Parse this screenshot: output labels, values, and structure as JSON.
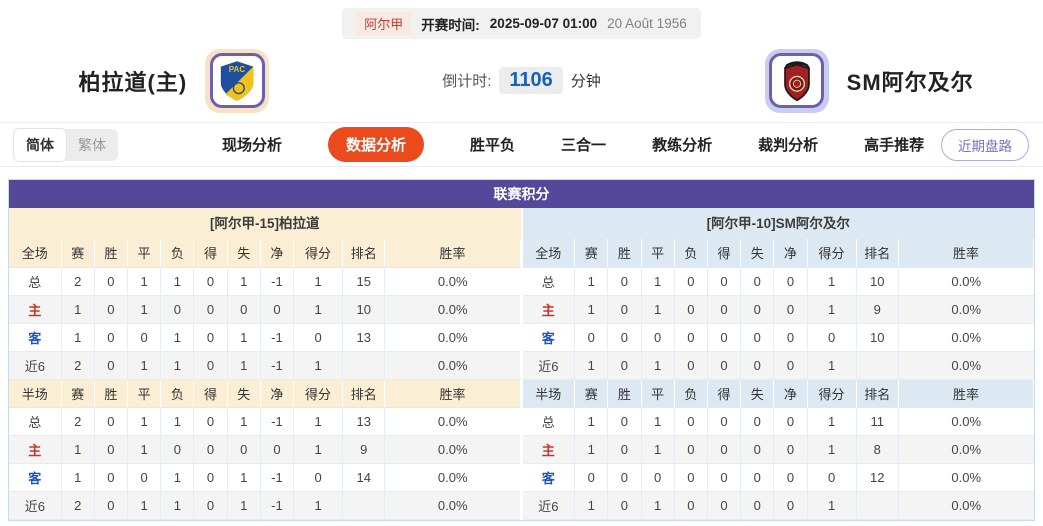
{
  "top_bar": {
    "league": "阿尔甲",
    "kickoff_label": "开赛时间:",
    "kickoff_time": "2025-09-07 01:00",
    "date_note": "20 Août 1956"
  },
  "header": {
    "home_team": "柏拉道(主)",
    "away_team": "SM阿尔及尔",
    "home_logo_text": "PAC",
    "away_logo_text": "U.S.M.A",
    "countdown_label": "倒计时:",
    "countdown_value": "1106",
    "countdown_unit": "分钟"
  },
  "lang_toggle": {
    "simplified": "简体",
    "traditional": "繁体"
  },
  "nav": {
    "items": [
      "现场分析",
      "数据分析",
      "胜平负",
      "三合一",
      "教练分析",
      "裁判分析",
      "高手推荐"
    ],
    "active_index": 1,
    "recent_button": "近期盘路"
  },
  "colors": {
    "accent_orange": "#EA4A1C",
    "purple_header": "#55489B",
    "cream_band": "#FAEFD5",
    "blue_band": "#DDE9F2",
    "home_row_red": "#C4352D",
    "away_row_blue": "#1A56C4",
    "countdown_blue": "#1660C0"
  },
  "table": {
    "title": "联赛积分",
    "columns": [
      "赛",
      "胜",
      "平",
      "负",
      "得",
      "失",
      "净",
      "得分",
      "排名",
      "胜率"
    ],
    "sides": [
      {
        "team_header": "[阿尔甲-15]柏拉道",
        "theme": "cream",
        "sections": [
          {
            "label": "全场",
            "rows": [
              {
                "label": "总",
                "type": "total",
                "values": [
                  "2",
                  "0",
                  "1",
                  "1",
                  "0",
                  "1",
                  "-1",
                  "1",
                  "15",
                  "0.0%"
                ]
              },
              {
                "label": "主",
                "type": "home",
                "values": [
                  "1",
                  "0",
                  "1",
                  "0",
                  "0",
                  "0",
                  "0",
                  "1",
                  "10",
                  "0.0%"
                ]
              },
              {
                "label": "客",
                "type": "away",
                "values": [
                  "1",
                  "0",
                  "0",
                  "1",
                  "0",
                  "1",
                  "-1",
                  "0",
                  "13",
                  "0.0%"
                ]
              },
              {
                "label": "近6",
                "type": "recent",
                "values": [
                  "2",
                  "0",
                  "1",
                  "1",
                  "0",
                  "1",
                  "-1",
                  "1",
                  "",
                  "0.0%"
                ]
              }
            ]
          },
          {
            "label": "半场",
            "rows": [
              {
                "label": "总",
                "type": "total",
                "values": [
                  "2",
                  "0",
                  "1",
                  "1",
                  "0",
                  "1",
                  "-1",
                  "1",
                  "13",
                  "0.0%"
                ]
              },
              {
                "label": "主",
                "type": "home",
                "values": [
                  "1",
                  "0",
                  "1",
                  "0",
                  "0",
                  "0",
                  "0",
                  "1",
                  "9",
                  "0.0%"
                ]
              },
              {
                "label": "客",
                "type": "away",
                "values": [
                  "1",
                  "0",
                  "0",
                  "1",
                  "0",
                  "1",
                  "-1",
                  "0",
                  "14",
                  "0.0%"
                ]
              },
              {
                "label": "近6",
                "type": "recent",
                "values": [
                  "2",
                  "0",
                  "1",
                  "1",
                  "0",
                  "1",
                  "-1",
                  "1",
                  "",
                  "0.0%"
                ]
              }
            ]
          }
        ]
      },
      {
        "team_header": "[阿尔甲-10]SM阿尔及尔",
        "theme": "blue",
        "sections": [
          {
            "label": "全场",
            "rows": [
              {
                "label": "总",
                "type": "total",
                "values": [
                  "1",
                  "0",
                  "1",
                  "0",
                  "0",
                  "0",
                  "0",
                  "1",
                  "10",
                  "0.0%"
                ]
              },
              {
                "label": "主",
                "type": "home",
                "values": [
                  "1",
                  "0",
                  "1",
                  "0",
                  "0",
                  "0",
                  "0",
                  "1",
                  "9",
                  "0.0%"
                ]
              },
              {
                "label": "客",
                "type": "away",
                "values": [
                  "0",
                  "0",
                  "0",
                  "0",
                  "0",
                  "0",
                  "0",
                  "0",
                  "10",
                  "0.0%"
                ]
              },
              {
                "label": "近6",
                "type": "recent",
                "values": [
                  "1",
                  "0",
                  "1",
                  "0",
                  "0",
                  "0",
                  "0",
                  "1",
                  "",
                  "0.0%"
                ]
              }
            ]
          },
          {
            "label": "半场",
            "rows": [
              {
                "label": "总",
                "type": "total",
                "values": [
                  "1",
                  "0",
                  "1",
                  "0",
                  "0",
                  "0",
                  "0",
                  "1",
                  "11",
                  "0.0%"
                ]
              },
              {
                "label": "主",
                "type": "home",
                "values": [
                  "1",
                  "0",
                  "1",
                  "0",
                  "0",
                  "0",
                  "0",
                  "1",
                  "8",
                  "0.0%"
                ]
              },
              {
                "label": "客",
                "type": "away",
                "values": [
                  "0",
                  "0",
                  "0",
                  "0",
                  "0",
                  "0",
                  "0",
                  "0",
                  "12",
                  "0.0%"
                ]
              },
              {
                "label": "近6",
                "type": "recent",
                "values": [
                  "1",
                  "0",
                  "1",
                  "0",
                  "0",
                  "0",
                  "0",
                  "1",
                  "",
                  "0.0%"
                ]
              }
            ]
          }
        ]
      }
    ]
  }
}
